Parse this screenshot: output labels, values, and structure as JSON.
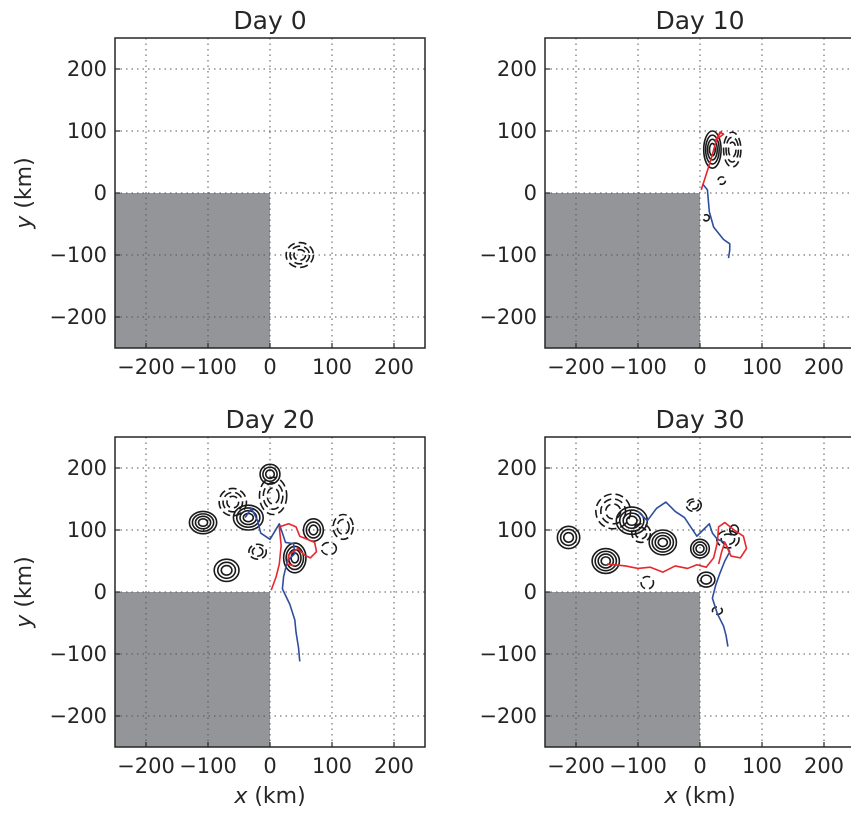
{
  "colors": {
    "land": "#939598",
    "contour": "#1a1a1a",
    "red_track": "#e8262d",
    "blue_track": "#2e4ea0",
    "grid": "#555555"
  },
  "chart_data": [
    {
      "type": "contour",
      "title": "Day 0",
      "xlabel": "",
      "ylabel": "y (km)",
      "xlim": [
        -250,
        250
      ],
      "ylim": [
        -250,
        250
      ],
      "xticks": [
        -200,
        -100,
        0,
        100,
        200
      ],
      "yticks": [
        -200,
        -100,
        0,
        100,
        200
      ],
      "grid": true,
      "land": {
        "x": [
          -250,
          0
        ],
        "y": [
          -250,
          0
        ]
      },
      "eddies": [
        {
          "x": 48,
          "y": -100,
          "rx": 22,
          "ry": 20,
          "sign": -1,
          "levels": 3
        }
      ],
      "red_track": [],
      "blue_track": []
    },
    {
      "type": "contour",
      "title": "Day 10",
      "xlabel": "",
      "ylabel": "",
      "xlim": [
        -250,
        250
      ],
      "ylim": [
        -250,
        250
      ],
      "xticks": [
        -200,
        -100,
        0,
        100,
        200
      ],
      "yticks": [
        -200,
        -100,
        0,
        100,
        200
      ],
      "grid": true,
      "land": {
        "x": [
          -250,
          0
        ],
        "y": [
          -250,
          0
        ]
      },
      "eddies": [
        {
          "x": 20,
          "y": 70,
          "rx": 14,
          "ry": 30,
          "sign": 1,
          "levels": 4
        },
        {
          "x": 52,
          "y": 70,
          "rx": 14,
          "ry": 28,
          "sign": -1,
          "levels": 3
        },
        {
          "x": 35,
          "y": 20,
          "rx": 6,
          "ry": 6,
          "sign": -1,
          "levels": 1
        },
        {
          "x": 10,
          "y": -40,
          "rx": 5,
          "ry": 5,
          "sign": -1,
          "levels": 1
        }
      ],
      "red_track": [
        [
          2,
          5
        ],
        [
          10,
          30
        ],
        [
          18,
          55
        ],
        [
          25,
          80
        ],
        [
          32,
          98
        ],
        [
          38,
          95
        ],
        [
          25,
          85
        ],
        [
          35,
          100
        ]
      ],
      "blue_track": [
        [
          4,
          15
        ],
        [
          12,
          5
        ],
        [
          15,
          -30
        ],
        [
          22,
          -55
        ],
        [
          38,
          -75
        ],
        [
          48,
          -82
        ],
        [
          48,
          -92
        ],
        [
          46,
          -105
        ]
      ]
    },
    {
      "type": "contour",
      "title": "Day 20",
      "xlabel": "x (km)",
      "ylabel": "y (km)",
      "xlim": [
        -250,
        250
      ],
      "ylim": [
        -250,
        250
      ],
      "xticks": [
        -200,
        -100,
        0,
        100,
        200
      ],
      "yticks": [
        -200,
        -100,
        0,
        100,
        200
      ],
      "grid": true,
      "land": {
        "x": [
          -250,
          0
        ],
        "y": [
          -250,
          0
        ]
      },
      "eddies": [
        {
          "x": -108,
          "y": 112,
          "rx": 22,
          "ry": 18,
          "sign": 1,
          "levels": 4
        },
        {
          "x": -60,
          "y": 145,
          "rx": 22,
          "ry": 22,
          "sign": -1,
          "levels": 3
        },
        {
          "x": -35,
          "y": 120,
          "rx": 24,
          "ry": 20,
          "sign": 1,
          "levels": 4
        },
        {
          "x": 5,
          "y": 155,
          "rx": 22,
          "ry": 30,
          "sign": -1,
          "levels": 3
        },
        {
          "x": 0,
          "y": 190,
          "rx": 16,
          "ry": 16,
          "sign": 1,
          "levels": 3
        },
        {
          "x": -70,
          "y": 35,
          "rx": 20,
          "ry": 18,
          "sign": 1,
          "levels": 3
        },
        {
          "x": -20,
          "y": 65,
          "rx": 14,
          "ry": 12,
          "sign": -1,
          "levels": 2
        },
        {
          "x": 40,
          "y": 55,
          "rx": 18,
          "ry": 24,
          "sign": 1,
          "levels": 4
        },
        {
          "x": 70,
          "y": 100,
          "rx": 16,
          "ry": 18,
          "sign": 1,
          "levels": 3
        },
        {
          "x": 118,
          "y": 105,
          "rx": 16,
          "ry": 20,
          "sign": -1,
          "levels": 2
        },
        {
          "x": 95,
          "y": 70,
          "rx": 12,
          "ry": 10,
          "sign": -1,
          "levels": 1
        }
      ],
      "red_track": [
        [
          2,
          3
        ],
        [
          10,
          25
        ],
        [
          15,
          45
        ],
        [
          18,
          75
        ],
        [
          15,
          105
        ],
        [
          30,
          110
        ],
        [
          42,
          105
        ],
        [
          48,
          90
        ],
        [
          60,
          85
        ],
        [
          72,
          80
        ],
        [
          75,
          65
        ],
        [
          65,
          55
        ],
        [
          55,
          60
        ],
        [
          45,
          70
        ],
        [
          30,
          60
        ],
        [
          28,
          45
        ],
        [
          40,
          42
        ]
      ],
      "blue_track": [
        [
          -40,
          120
        ],
        [
          -30,
          135
        ],
        [
          -20,
          115
        ],
        [
          -15,
          95
        ],
        [
          0,
          85
        ],
        [
          15,
          110
        ],
        [
          20,
          95
        ],
        [
          25,
          80
        ],
        [
          38,
          78
        ],
        [
          40,
          62
        ],
        [
          28,
          50
        ],
        [
          22,
          25
        ],
        [
          20,
          5
        ],
        [
          32,
          -20
        ],
        [
          40,
          -45
        ],
        [
          42,
          -65
        ],
        [
          46,
          -90
        ],
        [
          48,
          -112
        ]
      ]
    },
    {
      "type": "contour",
      "title": "Day 30",
      "xlabel": "x (km)",
      "ylabel": "",
      "xlim": [
        -250,
        250
      ],
      "ylim": [
        -250,
        250
      ],
      "xticks": [
        -200,
        -100,
        0,
        100,
        200
      ],
      "yticks": [
        -200,
        -100,
        0,
        100,
        200
      ],
      "grid": true,
      "land": {
        "x": [
          -250,
          0
        ],
        "y": [
          -250,
          0
        ]
      },
      "eddies": [
        {
          "x": -212,
          "y": 88,
          "rx": 18,
          "ry": 18,
          "sign": 1,
          "levels": 3
        },
        {
          "x": -152,
          "y": 50,
          "rx": 22,
          "ry": 20,
          "sign": 1,
          "levels": 4
        },
        {
          "x": -140,
          "y": 130,
          "rx": 28,
          "ry": 28,
          "sign": -1,
          "levels": 3
        },
        {
          "x": -110,
          "y": 115,
          "rx": 25,
          "ry": 22,
          "sign": 1,
          "levels": 4
        },
        {
          "x": -60,
          "y": 80,
          "rx": 22,
          "ry": 20,
          "sign": 1,
          "levels": 4
        },
        {
          "x": -95,
          "y": 95,
          "rx": 15,
          "ry": 15,
          "sign": -1,
          "levels": 2
        },
        {
          "x": 0,
          "y": 70,
          "rx": 15,
          "ry": 15,
          "sign": 1,
          "levels": 3
        },
        {
          "x": -10,
          "y": 140,
          "rx": 12,
          "ry": 10,
          "sign": -1,
          "levels": 2
        },
        {
          "x": 45,
          "y": 85,
          "rx": 18,
          "ry": 14,
          "sign": -1,
          "levels": 2
        },
        {
          "x": 55,
          "y": 100,
          "rx": 7,
          "ry": 8,
          "sign": 1,
          "levels": 1
        },
        {
          "x": 10,
          "y": 20,
          "rx": 14,
          "ry": 12,
          "sign": 1,
          "levels": 2
        },
        {
          "x": -85,
          "y": 15,
          "rx": 10,
          "ry": 10,
          "sign": -1,
          "levels": 1
        },
        {
          "x": 28,
          "y": -30,
          "rx": 8,
          "ry": 6,
          "sign": -1,
          "levels": 1
        }
      ],
      "red_track": [
        [
          -150,
          45
        ],
        [
          -120,
          42
        ],
        [
          -100,
          38
        ],
        [
          -80,
          40
        ],
        [
          -60,
          32
        ],
        [
          -40,
          42
        ],
        [
          -20,
          38
        ],
        [
          -5,
          44
        ],
        [
          10,
          40
        ],
        [
          22,
          55
        ],
        [
          28,
          80
        ],
        [
          30,
          105
        ],
        [
          40,
          112
        ],
        [
          55,
          100
        ],
        [
          70,
          90
        ],
        [
          75,
          70
        ],
        [
          65,
          55
        ],
        [
          50,
          58
        ],
        [
          40,
          80
        ],
        [
          35,
          65
        ],
        [
          30,
          45
        ]
      ],
      "blue_track": [
        [
          -100,
          130
        ],
        [
          -85,
          115
        ],
        [
          -70,
          135
        ],
        [
          -55,
          145
        ],
        [
          -40,
          130
        ],
        [
          -25,
          120
        ],
        [
          -15,
          105
        ],
        [
          -5,
          90
        ],
        [
          5,
          100
        ],
        [
          15,
          110
        ],
        [
          20,
          95
        ],
        [
          28,
          85
        ],
        [
          40,
          80
        ],
        [
          48,
          65
        ],
        [
          40,
          50
        ],
        [
          32,
          30
        ],
        [
          25,
          10
        ],
        [
          20,
          -10
        ],
        [
          28,
          -35
        ],
        [
          38,
          -55
        ],
        [
          42,
          -70
        ],
        [
          45,
          -88
        ]
      ]
    }
  ]
}
